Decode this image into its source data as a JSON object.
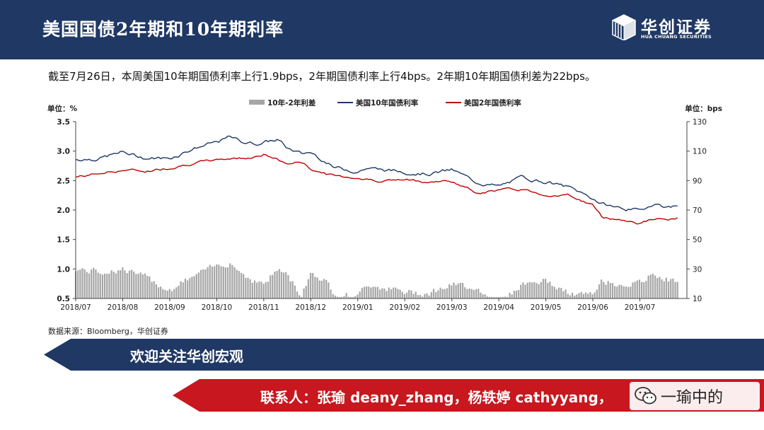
{
  "header": {
    "title": "美国国债2年期和10年期利率",
    "logo_cn": "华创证券",
    "logo_en": "HUA CHUANG SECURITIES"
  },
  "summary": "截至7月26日，本周美国10年期国债利率上行1.9bps，2年期国债利率上行4bps。2年期10年期国债利差为22bps。",
  "source": "数据来源：Bloomberg，华创证券",
  "banner1": {
    "text": "欢迎关注华创宏观"
  },
  "banner2": {
    "text": "联系人：张瑜 deany_zhang，杨轶婷 cathyyang，"
  },
  "wechat": {
    "text": "一瑜中的",
    "icon": "wechat-icon"
  },
  "colors": {
    "header": "#1f3864",
    "line10y": "#1f3864",
    "line2y": "#c00000",
    "bars": "#a6a6a6",
    "banner_red": "#c8171e"
  },
  "chart_data": {
    "type": "bar+line",
    "y_left_unit": "单位：%",
    "y_right_unit": "单位：bps",
    "ylim_left": [
      0.5,
      3.5
    ],
    "ylim_right": [
      10,
      130
    ],
    "y_left_ticks": [
      "3.5",
      "3.0",
      "2.5",
      "2.0",
      "1.5",
      "1.0",
      "0.5"
    ],
    "y_right_ticks": [
      "130",
      "110",
      "90",
      "70",
      "50",
      "30",
      "10"
    ],
    "x_ticks": [
      "2018/07",
      "2018/08",
      "2018/09",
      "2018/10",
      "2018/11",
      "2018/12",
      "2019/01",
      "2019/02",
      "2019/03",
      "2019/04",
      "2019/05",
      "2019/06",
      "2019/07"
    ],
    "legend": [
      "10年-2年利差",
      "美国10年国债利率",
      "美国2年国债利率"
    ],
    "legend_position": "top-center",
    "grid": false,
    "anchors_month_index": [
      0,
      0.5,
      1,
      1.5,
      2,
      2.5,
      3,
      3.3,
      3.5,
      3.8,
      4,
      4.3,
      4.5,
      4.8,
      5,
      5.3,
      5.5,
      6,
      6.2,
      6.5,
      7,
      7.5,
      8,
      8.5,
      9,
      9.5,
      10,
      10.5,
      11,
      11.2,
      11.5,
      12,
      12.3,
      12.6,
      12.8
    ],
    "y10_anchors": [
      2.86,
      2.88,
      2.98,
      2.88,
      2.88,
      3.05,
      3.15,
      3.24,
      3.16,
      3.13,
      3.15,
      3.2,
      3.05,
      2.95,
      2.98,
      2.84,
      2.72,
      2.66,
      2.72,
      2.68,
      2.65,
      2.62,
      2.68,
      2.48,
      2.4,
      2.55,
      2.48,
      2.38,
      2.2,
      2.1,
      2.05,
      1.98,
      2.12,
      2.05,
      2.07
    ],
    "y2_anchors": [
      2.56,
      2.62,
      2.68,
      2.66,
      2.72,
      2.8,
      2.84,
      2.88,
      2.88,
      2.91,
      2.94,
      2.85,
      2.78,
      2.82,
      2.7,
      2.62,
      2.58,
      2.55,
      2.52,
      2.5,
      2.51,
      2.48,
      2.49,
      2.3,
      2.34,
      2.35,
      2.26,
      2.25,
      2.08,
      1.88,
      1.85,
      1.78,
      1.85,
      1.82,
      1.86
    ],
    "spread_anchors_bps": [
      30,
      28,
      30,
      24,
      16,
      25,
      32,
      35,
      28,
      22,
      20,
      30,
      26,
      12,
      28,
      22,
      14,
      11,
      20,
      18,
      14,
      14,
      19,
      18,
      6,
      20,
      22,
      13,
      12,
      22,
      20,
      20,
      27,
      23,
      21
    ]
  }
}
